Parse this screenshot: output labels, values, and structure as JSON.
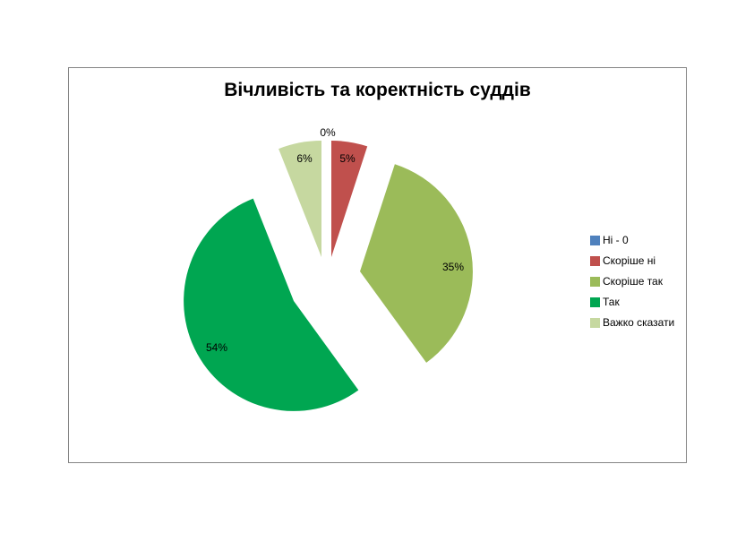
{
  "chart_data": {
    "type": "pie",
    "title": "Вічливість та коректність суддів",
    "categories": [
      "Ні - 0",
      "Скоріше ні",
      "Скоріше так",
      "Так",
      "Важко сказати"
    ],
    "values": [
      0,
      5,
      35,
      54,
      6
    ],
    "unit": "%",
    "data_labels": [
      "0%",
      "5%",
      "35%",
      "54%",
      "6%"
    ],
    "colors": [
      "#4F81BD",
      "#C0504D",
      "#9BBB59",
      "#00A651",
      "#C6D8A0"
    ],
    "legend_position": "right",
    "exploded": true,
    "start_angle_deg": 0,
    "direction": "clockwise"
  }
}
